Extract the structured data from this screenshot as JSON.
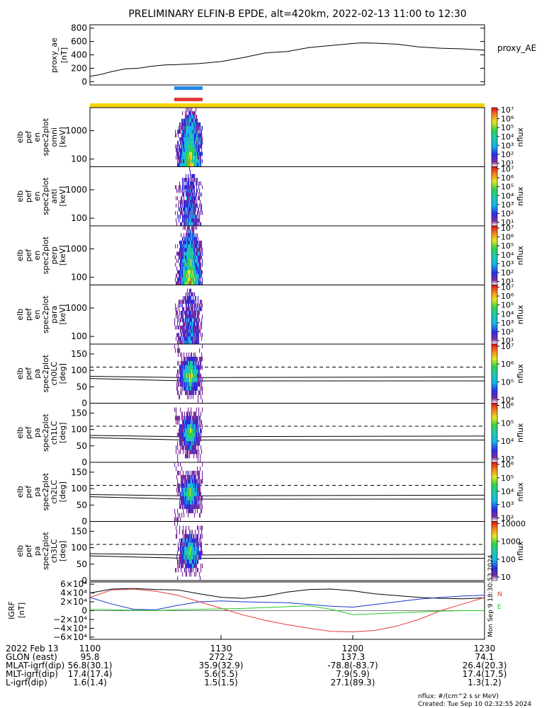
{
  "title": "PRELIMINARY ELFIN-B EPDE, alt=420km, 2022-02-13 11:00 to 12:30",
  "colors": {
    "orbit_bar": "#f5d400",
    "bar_blue": "#1e88e5",
    "bar_red": "#e53935",
    "axis": "#000000"
  },
  "chart_data": [
    {
      "type": "line",
      "ylabel": [
        "proxy_ae",
        "[nT]"
      ],
      "legend": "proxy_AE",
      "yticks": [
        "800",
        "600",
        "400",
        "200",
        "0"
      ],
      "ylim": [
        -50,
        850
      ],
      "x": [
        0,
        2,
        5,
        8,
        11,
        14,
        17,
        20,
        25,
        30,
        35,
        40,
        45,
        50,
        55,
        60,
        62,
        65,
        70,
        75,
        80,
        85,
        90
      ],
      "values": [
        80,
        100,
        150,
        190,
        200,
        230,
        250,
        255,
        270,
        300,
        360,
        430,
        450,
        510,
        540,
        570,
        580,
        575,
        560,
        520,
        500,
        490,
        470
      ]
    },
    {
      "type": "heatmap",
      "panels": [
        {
          "label": [
            "elb",
            "pef",
            "en",
            "spec2plot",
            "omni",
            "[keV]"
          ],
          "yticks": [
            "1000",
            "100"
          ],
          "cb_ticks": [
            "10⁷",
            "10⁶",
            "10⁵",
            "10⁴",
            "10³",
            "10²",
            "10¹"
          ],
          "cb_title": "nflux"
        },
        {
          "label": [
            "elb",
            "pef",
            "en",
            "spec2plot",
            "anti",
            "[keV]"
          ],
          "yticks": [
            "1000",
            "100"
          ],
          "cb_ticks": [
            "10⁷",
            "10⁶",
            "10⁵",
            "10⁴",
            "10³",
            "10²",
            "10¹"
          ],
          "cb_title": "nflux"
        },
        {
          "label": [
            "elb",
            "pef",
            "en",
            "spec2plot",
            "perp",
            "[keV]"
          ],
          "yticks": [
            "1000",
            "100"
          ],
          "cb_ticks": [
            "10⁷",
            "10⁶",
            "10⁵",
            "10⁴",
            "10³",
            "10²",
            "10¹"
          ],
          "cb_title": "nflux"
        },
        {
          "label": [
            "elb",
            "pef",
            "en",
            "spec2plot",
            "para",
            "[keV]"
          ],
          "yticks": [
            "1000",
            "100"
          ],
          "cb_ticks": [
            "10⁷",
            "10⁶",
            "10⁵",
            "10⁴",
            "10³",
            "10²",
            "10¹"
          ],
          "cb_title": "nflux"
        },
        {
          "label": [
            "elb",
            "pef",
            "pa",
            "spec2plot",
            "ch0LC",
            "[deg]"
          ],
          "yticks": [
            "150",
            "100",
            "50",
            "0"
          ],
          "cb_ticks": [
            "10⁷",
            "10⁶",
            "10⁵",
            "10⁴"
          ],
          "cb_title": "nflux"
        },
        {
          "label": [
            "elb",
            "pef",
            "pa",
            "spec2plot",
            "ch1LC",
            "[deg]"
          ],
          "yticks": [
            "150",
            "100",
            "50",
            "0"
          ],
          "cb_ticks": [
            "10⁶",
            "10⁵",
            "10⁴",
            "10³"
          ],
          "cb_title": "nflux"
        },
        {
          "label": [
            "elb",
            "pef",
            "pa",
            "spec2plot",
            "ch2LC",
            "[deg]"
          ],
          "yticks": [
            "150",
            "100",
            "50",
            "0"
          ],
          "cb_ticks": [
            "10⁶",
            "10⁵",
            "10⁴",
            "10³",
            "10²"
          ],
          "cb_title": "nflux"
        },
        {
          "label": [
            "elb",
            "pef",
            "pa",
            "spec2plot",
            "ch3LC",
            "[deg]"
          ],
          "yticks": [
            "150",
            "100",
            "50",
            "0"
          ],
          "cb_ticks": [
            "10000",
            "1000",
            "100",
            "10"
          ],
          "cb_title": "nflux"
        }
      ]
    },
    {
      "type": "line",
      "ylabel": [
        "IGRF",
        "[nT]"
      ],
      "yticks": [
        "6×10⁴",
        "4×10⁴",
        "2×10⁴",
        "0",
        "−2×10⁴",
        "−4×10⁴",
        "−6×10⁴"
      ],
      "ylim": [
        -65000,
        65000
      ],
      "legend_letters": [
        {
          "text": "N",
          "color": "#e53935"
        },
        {
          "text": "E",
          "color": "#22cc22"
        }
      ],
      "stamp": "Mon Sep 9 18:30:53 2024",
      "x": [
        0,
        5,
        10,
        15,
        20,
        25,
        30,
        35,
        40,
        45,
        50,
        55,
        60,
        65,
        70,
        75,
        80,
        85,
        90
      ],
      "series": [
        {
          "color": "#000000",
          "values": [
            40000,
            49000,
            50000,
            48000,
            47000,
            38000,
            30000,
            28000,
            33000,
            42000,
            48000,
            49000,
            45000,
            38000,
            34000,
            30000,
            28000,
            27000,
            29000
          ]
        },
        {
          "color": "#1a33cc",
          "values": [
            30000,
            15000,
            3000,
            2000,
            12000,
            20000,
            22000,
            20000,
            19000,
            18000,
            14000,
            10000,
            8000,
            14000,
            20000,
            26000,
            30000,
            33000,
            35000
          ]
        },
        {
          "color": "#e53935",
          "values": [
            30000,
            47000,
            49000,
            44000,
            35000,
            20000,
            5000,
            -10000,
            -22000,
            -32000,
            -40000,
            -47000,
            -48000,
            -45000,
            -35000,
            -20000,
            0,
            15000,
            30000
          ]
        },
        {
          "color": "#22cc22",
          "values": [
            3000,
            2000,
            1000,
            0,
            2000,
            3000,
            4000,
            5000,
            7000,
            9000,
            11000,
            3000,
            -9000,
            -7000,
            -5000,
            -3000,
            -1000,
            0,
            0
          ]
        }
      ]
    }
  ],
  "xaxis": {
    "times": [
      "1100",
      "1130",
      "1200",
      "1230"
    ],
    "rows": [
      {
        "label": "2022 Feb 13",
        "values": [
          "1100",
          "1130",
          "1200",
          "1230"
        ]
      },
      {
        "label": "GLON (east)",
        "values": [
          "95.8",
          "272.2",
          "137.3",
          "74.1"
        ]
      },
      {
        "label": "MLAT-igrf(dip)",
        "values": [
          "56.8(30.1)",
          "35.9(32.9)",
          "-78.8(-83.7)",
          "26.4(20.3)"
        ]
      },
      {
        "label": "MLT-igrf(dip)",
        "values": [
          "17.4(17.4)",
          "5.6(5.5)",
          "7.9(5.9)",
          "17.4(17.5)"
        ]
      },
      {
        "label": "L-igrf(dip)",
        "values": [
          "1.6(1.4)",
          "1.5(1.5)",
          "27.1(89.3)",
          "1.3(1.2)"
        ]
      }
    ]
  },
  "footer": {
    "units": "nflux: #/(cm^2 s sr MeV)",
    "created": "Created: Tue Sep 10 02:32:55 2024"
  }
}
